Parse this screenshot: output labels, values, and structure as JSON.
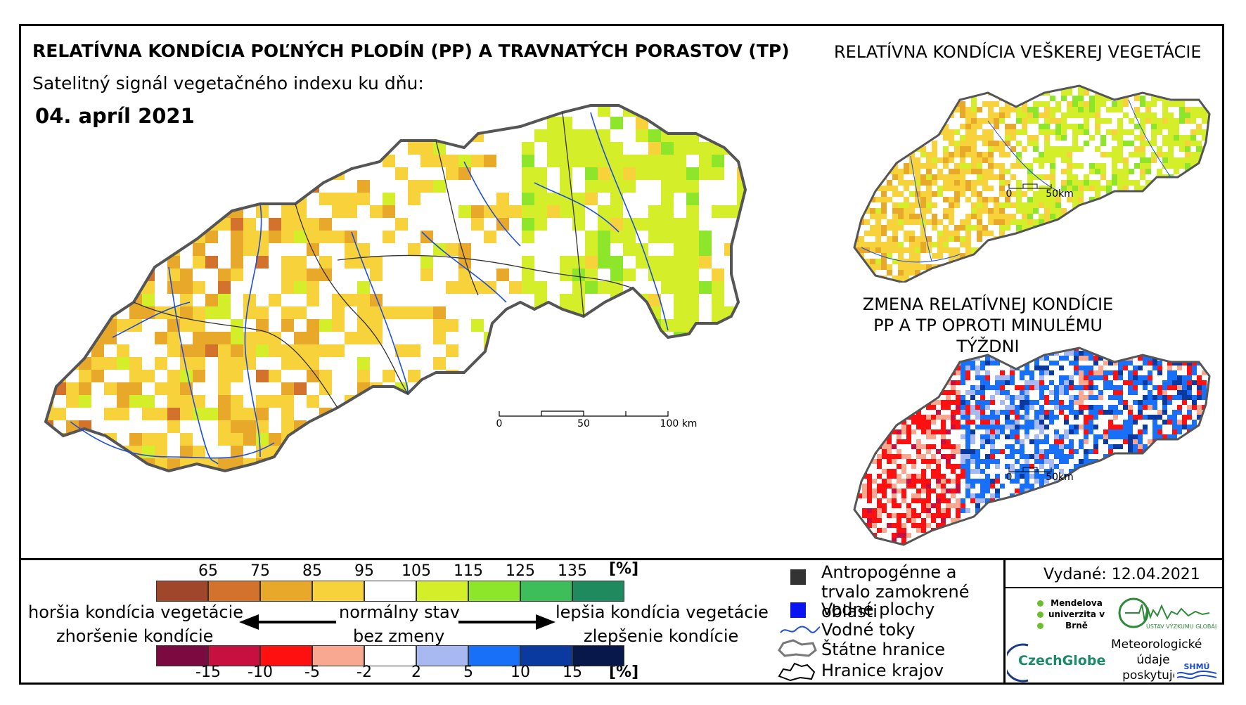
{
  "main_map": {
    "title": "RELATÍVNA KONDÍCIA POĽNÝCH PLODÍN (PP) A TRAVNATÝCH PORASTOV (TP)",
    "subtitle": "Satelitný signál vegetačného indexu ku dňu:",
    "date": "04. apríl 2021",
    "scale": {
      "labels": [
        "0",
        "50",
        "100 km"
      ]
    }
  },
  "right_top_map": {
    "title": "RELATÍVNA KONDÍCIA VEŠKEREJ VEGETÁCIE",
    "scale": {
      "labels": [
        "0",
        "50km"
      ]
    }
  },
  "right_bottom_map": {
    "title": "ZMENA RELATÍVNEJ KONDÍCIE PP A TP OPROTI MINULÉMU TÝŽDNI",
    "scale": {
      "labels": [
        "0",
        "50km"
      ]
    }
  },
  "legend": {
    "condition_scale": {
      "ticks": [
        "65",
        "75",
        "85",
        "95",
        "105",
        "115",
        "125",
        "135"
      ],
      "unit": "[%]",
      "colors": [
        "#a0462a",
        "#d2722c",
        "#e8a82a",
        "#f8d23a",
        "#ffffff",
        "#d4ef2a",
        "#8ee62a",
        "#3dbe5a",
        "#1e8a5e"
      ]
    },
    "change_scale": {
      "ticks": [
        "-15",
        "-10",
        "-5",
        "-2",
        "2",
        "5",
        "10",
        "15"
      ],
      "unit": "[%]",
      "colors": [
        "#7a0a40",
        "#c81040",
        "#ff1010",
        "#f8a890",
        "#ffffff",
        "#a8b8f0",
        "#1870f8",
        "#0a3aa0",
        "#08184a"
      ]
    },
    "worse_line1": "horšia kondícia vegetácie",
    "worse_line2": "zhoršenie kondície",
    "normal_line1": "normálny stav",
    "normal_line2": "bez zmeny",
    "better_line1": "lepšia kondícia vegetácie",
    "better_line2": "zlepšenie kondície",
    "items": {
      "anthropogenic": "Antropogénne a trvalo zamokrené oblasti",
      "water_areas": "Vodné plochy",
      "water_flows": "Vodné toky",
      "state_border": "Štátne hranice",
      "regional_border": "Hranice krajov"
    }
  },
  "issued": "Vydané: 12.04.2021",
  "logos": {
    "mendel": "Mendelova univerzita v Brně",
    "czechglobe": "CzechGlobe",
    "ustav": "ÚSTAV VÝZKUMU GLOBÁLNÍ ZMĚNY",
    "meteo": "Meteorologické údaje poskytuje:",
    "shmu": "SHMÚ"
  }
}
